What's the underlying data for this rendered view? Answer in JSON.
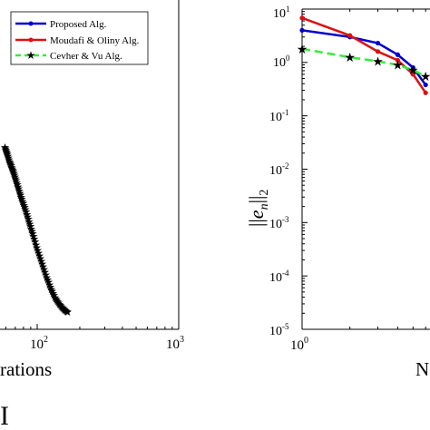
{
  "chart_data": [
    {
      "panel": "left",
      "type": "scatter",
      "scale": {
        "x": "log"
      },
      "xlabel": "Number of Iterations",
      "xlabel_visible_fragment": "rations",
      "ylabel": "",
      "xlim": [
        1,
        1000
      ],
      "x_ticks": [
        {
          "value": 100,
          "base": "10",
          "exp": "2"
        },
        {
          "value": 1000,
          "base": "10",
          "exp": "3"
        }
      ],
      "legend": {
        "placement": "top-right",
        "entries": []
      },
      "grid": false,
      "series": [
        {
          "name": "Cevher & Vu Alg.",
          "color": "#33ee33",
          "marker": "star",
          "linestyle": "dashed",
          "points": [
            {
              "x": 35,
              "y": 0.96
            },
            {
              "x": 40,
              "y": 0.92
            },
            {
              "x": 46,
              "y": 0.87
            },
            {
              "x": 52,
              "y": 0.83
            },
            {
              "x": 58,
              "y": 0.78
            },
            {
              "x": 65,
              "y": 0.72
            },
            {
              "x": 72,
              "y": 0.66
            },
            {
              "x": 80,
              "y": 0.6
            },
            {
              "x": 88,
              "y": 0.53
            },
            {
              "x": 96,
              "y": 0.46
            },
            {
              "x": 105,
              "y": 0.38
            },
            {
              "x": 115,
              "y": 0.3
            },
            {
              "x": 125,
              "y": 0.22
            },
            {
              "x": 135,
              "y": 0.15
            },
            {
              "x": 145,
              "y": 0.09
            },
            {
              "x": 155,
              "y": 0.05
            },
            {
              "x": 165,
              "y": 0.02
            },
            {
              "x": 175,
              "y": 0.0
            }
          ]
        }
      ],
      "panel_label_fragment": "I"
    },
    {
      "panel": "right",
      "type": "line",
      "scale": {
        "x": "log",
        "y": "log"
      },
      "xlabel": "Number of Iterations",
      "xlabel_visible_fragment": "N",
      "ylabel": "||e_n||_2",
      "ylabel_display": {
        "outer_left": "||",
        "italic_e": "e",
        "sub_n": "n",
        "outer_right": "||",
        "sub_2": "2"
      },
      "xlim": [
        1,
        10
      ],
      "ylim": [
        1e-05,
        10
      ],
      "x_ticks": [
        {
          "value": 1,
          "base": "10",
          "exp": "0"
        }
      ],
      "y_ticks": [
        {
          "value": 10,
          "base": "10",
          "exp": "1"
        },
        {
          "value": 1,
          "base": "10",
          "exp": "0"
        },
        {
          "value": 0.1,
          "base": "10",
          "exp": "-1"
        },
        {
          "value": 0.01,
          "base": "10",
          "exp": "-2"
        },
        {
          "value": 0.001,
          "base": "10",
          "exp": "-3"
        },
        {
          "value": 0.0001,
          "base": "10",
          "exp": "-4"
        },
        {
          "value": 1e-05,
          "base": "10",
          "exp": "-5"
        }
      ],
      "legend": {
        "placement": "top-left",
        "entries": [
          {
            "label": "Proposed Alg.",
            "color": "#0000cc",
            "linestyle": "solid",
            "marker": "dot"
          },
          {
            "label": "Moudafi & Oliny Alg.",
            "color": "#dd1111",
            "linestyle": "solid",
            "marker": "dot"
          },
          {
            "label": "Cevher & Vu Alg.",
            "color": "#33ee33",
            "linestyle": "dashed",
            "marker": "star"
          }
        ]
      },
      "grid": false,
      "series": [
        {
          "name": "Proposed Alg.",
          "color": "#0000cc",
          "points": [
            {
              "x": 1,
              "y": 4.0
            },
            {
              "x": 2,
              "y": 3.0
            },
            {
              "x": 3,
              "y": 2.3
            },
            {
              "x": 4,
              "y": 1.4
            },
            {
              "x": 5,
              "y": 0.8
            },
            {
              "x": 6,
              "y": 0.38
            }
          ]
        },
        {
          "name": "Moudafi & Oliny Alg.",
          "color": "#dd1111",
          "points": [
            {
              "x": 1,
              "y": 6.8
            },
            {
              "x": 2,
              "y": 3.2
            },
            {
              "x": 3,
              "y": 1.6
            },
            {
              "x": 4,
              "y": 1.1
            },
            {
              "x": 5,
              "y": 0.6
            },
            {
              "x": 6,
              "y": 0.27
            }
          ]
        },
        {
          "name": "Cevher & Vu Alg.",
          "color": "#33ee33",
          "points": [
            {
              "x": 1,
              "y": 1.8
            },
            {
              "x": 2,
              "y": 1.25
            },
            {
              "x": 3,
              "y": 1.05
            },
            {
              "x": 4,
              "y": 0.9
            },
            {
              "x": 5,
              "y": 0.72
            },
            {
              "x": 6,
              "y": 0.55
            }
          ]
        }
      ]
    }
  ]
}
